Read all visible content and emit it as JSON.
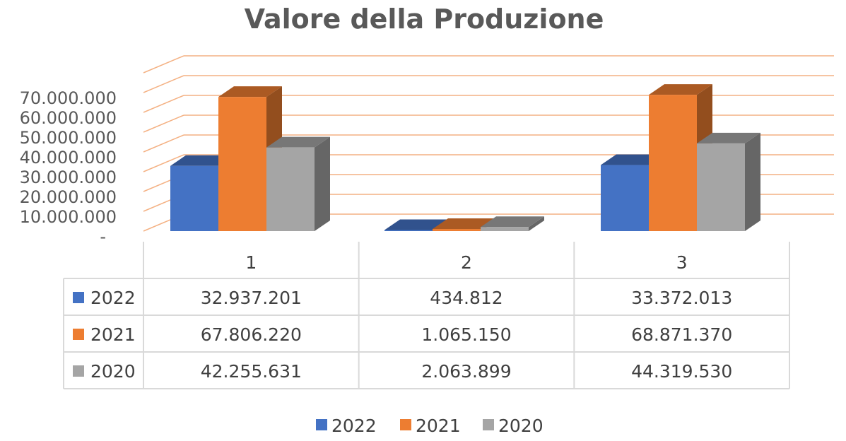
{
  "chart_data": {
    "type": "bar",
    "title": "Valore della Produzione",
    "categories": [
      "1",
      "2",
      "3"
    ],
    "series": [
      {
        "name": "2022",
        "color": "#4472C4",
        "values": [
          32937201,
          434812,
          33372013
        ],
        "labels": [
          "32.937.201",
          "434.812",
          "33.372.013"
        ]
      },
      {
        "name": "2021",
        "color": "#ED7D31",
        "values": [
          67806220,
          1065150,
          68871370
        ],
        "labels": [
          "67.806.220",
          "1.065.150",
          "68.871.370"
        ]
      },
      {
        "name": "2020",
        "color": "#A5A5A5",
        "values": [
          42255631,
          2063899,
          44319530
        ],
        "labels": [
          "42.255.631",
          "2.063.899",
          "44.319.530"
        ]
      }
    ],
    "y_ticks": [
      "-",
      "10.000.000",
      "20.000.000",
      "30.000.000",
      "40.000.000",
      "50.000.000",
      "60.000.000",
      "70.000.000"
    ],
    "ylim": [
      0,
      80000000
    ],
    "grid": true,
    "gridline_color": "#F4B183",
    "data_table": true,
    "legend_position": "bottom",
    "style": "3d-clustered-column"
  }
}
